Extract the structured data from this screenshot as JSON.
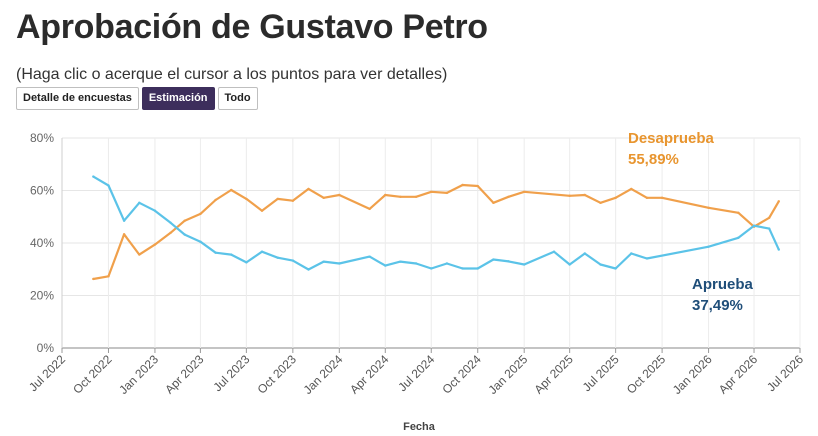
{
  "title": "Aprobación de Gustavo Petro",
  "subtitle": "(Haga clic o acerque el cursor a los puntos para ver detalles)",
  "tabs": [
    {
      "label": "Detalle de encuestas",
      "active": false
    },
    {
      "label": "Estimación",
      "active": true
    },
    {
      "label": "Todo",
      "active": false
    }
  ],
  "chart_data": {
    "type": "line",
    "title": "Aprobación de Gustavo Petro",
    "xlabel": "Fecha",
    "ylabel": "",
    "ylim": [
      0,
      80
    ],
    "xlim": [
      "2022-07-01",
      "2026-07-01"
    ],
    "y_ticks": [
      "0%",
      "20%",
      "40%",
      "60%",
      "80%"
    ],
    "x_ticks": [
      "Jul 2022",
      "Oct 2022",
      "Jan 2023",
      "Apr 2023",
      "Jul 2023",
      "Oct 2023",
      "Jan 2024",
      "Apr 2024",
      "Jul 2024",
      "Oct 2024",
      "Jan 2025",
      "Apr 2025",
      "Jul 2025",
      "Oct 2025",
      "Jan 2026",
      "Apr 2026",
      "Jul 2026"
    ],
    "grid": true,
    "series": [
      {
        "name": "Desaprueba",
        "color": "#f0a04b",
        "end_label": "55,89%",
        "points": [
          [
            "2022-09-01",
            26.3
          ],
          [
            "2022-10-01",
            27.3
          ],
          [
            "2022-11-01",
            43.3
          ],
          [
            "2022-12-01",
            35.6
          ],
          [
            "2023-01-01",
            39.4
          ],
          [
            "2023-02-01",
            43.9
          ],
          [
            "2023-03-01",
            48.5
          ],
          [
            "2023-04-01",
            51.1
          ],
          [
            "2023-05-01",
            56.4
          ],
          [
            "2023-06-01",
            60.2
          ],
          [
            "2023-07-01",
            56.8
          ],
          [
            "2023-08-01",
            52.3
          ],
          [
            "2023-09-01",
            56.8
          ],
          [
            "2023-10-01",
            56.1
          ],
          [
            "2023-11-01",
            60.6
          ],
          [
            "2023-12-01",
            57.2
          ],
          [
            "2024-01-01",
            58.3
          ],
          [
            "2024-03-01",
            53.0
          ],
          [
            "2024-04-01",
            58.3
          ],
          [
            "2024-05-01",
            57.6
          ],
          [
            "2024-06-01",
            57.6
          ],
          [
            "2024-07-01",
            59.5
          ],
          [
            "2024-08-01",
            59.1
          ],
          [
            "2024-09-01",
            62.1
          ],
          [
            "2024-10-01",
            61.7
          ],
          [
            "2024-11-01",
            55.3
          ],
          [
            "2024-12-01",
            57.6
          ],
          [
            "2025-01-01",
            59.5
          ],
          [
            "2025-04-01",
            58.0
          ],
          [
            "2025-05-01",
            58.3
          ],
          [
            "2025-06-01",
            55.3
          ],
          [
            "2025-07-01",
            57.2
          ],
          [
            "2025-08-01",
            60.6
          ],
          [
            "2025-09-01",
            57.2
          ],
          [
            "2025-10-01",
            57.2
          ],
          [
            "2026-01-01",
            53.4
          ],
          [
            "2026-03-01",
            51.5
          ],
          [
            "2026-04-01",
            46.2
          ],
          [
            "2026-05-01",
            49.6
          ],
          [
            "2026-05-20",
            55.9
          ]
        ]
      },
      {
        "name": "Aprueba",
        "color": "#5bc3e8",
        "end_label": "37,49%",
        "points": [
          [
            "2022-09-01",
            65.3
          ],
          [
            "2022-10-01",
            61.9
          ],
          [
            "2022-11-01",
            48.5
          ],
          [
            "2022-12-01",
            55.3
          ],
          [
            "2023-01-01",
            52.3
          ],
          [
            "2023-02-01",
            47.7
          ],
          [
            "2023-03-01",
            43.2
          ],
          [
            "2023-04-01",
            40.5
          ],
          [
            "2023-05-01",
            36.3
          ],
          [
            "2023-06-01",
            35.6
          ],
          [
            "2023-07-01",
            32.6
          ],
          [
            "2023-08-01",
            36.7
          ],
          [
            "2023-09-01",
            34.4
          ],
          [
            "2023-10-01",
            33.3
          ],
          [
            "2023-11-01",
            29.9
          ],
          [
            "2023-12-01",
            32.9
          ],
          [
            "2024-01-01",
            32.2
          ],
          [
            "2024-03-01",
            34.8
          ],
          [
            "2024-04-01",
            31.4
          ],
          [
            "2024-05-01",
            32.9
          ],
          [
            "2024-06-01",
            32.2
          ],
          [
            "2024-07-01",
            30.3
          ],
          [
            "2024-08-01",
            32.2
          ],
          [
            "2024-09-01",
            30.3
          ],
          [
            "2024-10-01",
            30.3
          ],
          [
            "2024-11-01",
            33.7
          ],
          [
            "2024-12-01",
            33.0
          ],
          [
            "2025-01-01",
            31.8
          ],
          [
            "2025-03-01",
            36.7
          ],
          [
            "2025-04-01",
            31.8
          ],
          [
            "2025-05-01",
            36.0
          ],
          [
            "2025-06-01",
            31.8
          ],
          [
            "2025-07-01",
            30.3
          ],
          [
            "2025-08-01",
            36.0
          ],
          [
            "2025-09-01",
            34.1
          ],
          [
            "2026-01-01",
            38.6
          ],
          [
            "2026-03-01",
            42.0
          ],
          [
            "2026-04-01",
            46.6
          ],
          [
            "2026-05-01",
            45.5
          ],
          [
            "2026-05-20",
            37.5
          ]
        ]
      }
    ]
  }
}
